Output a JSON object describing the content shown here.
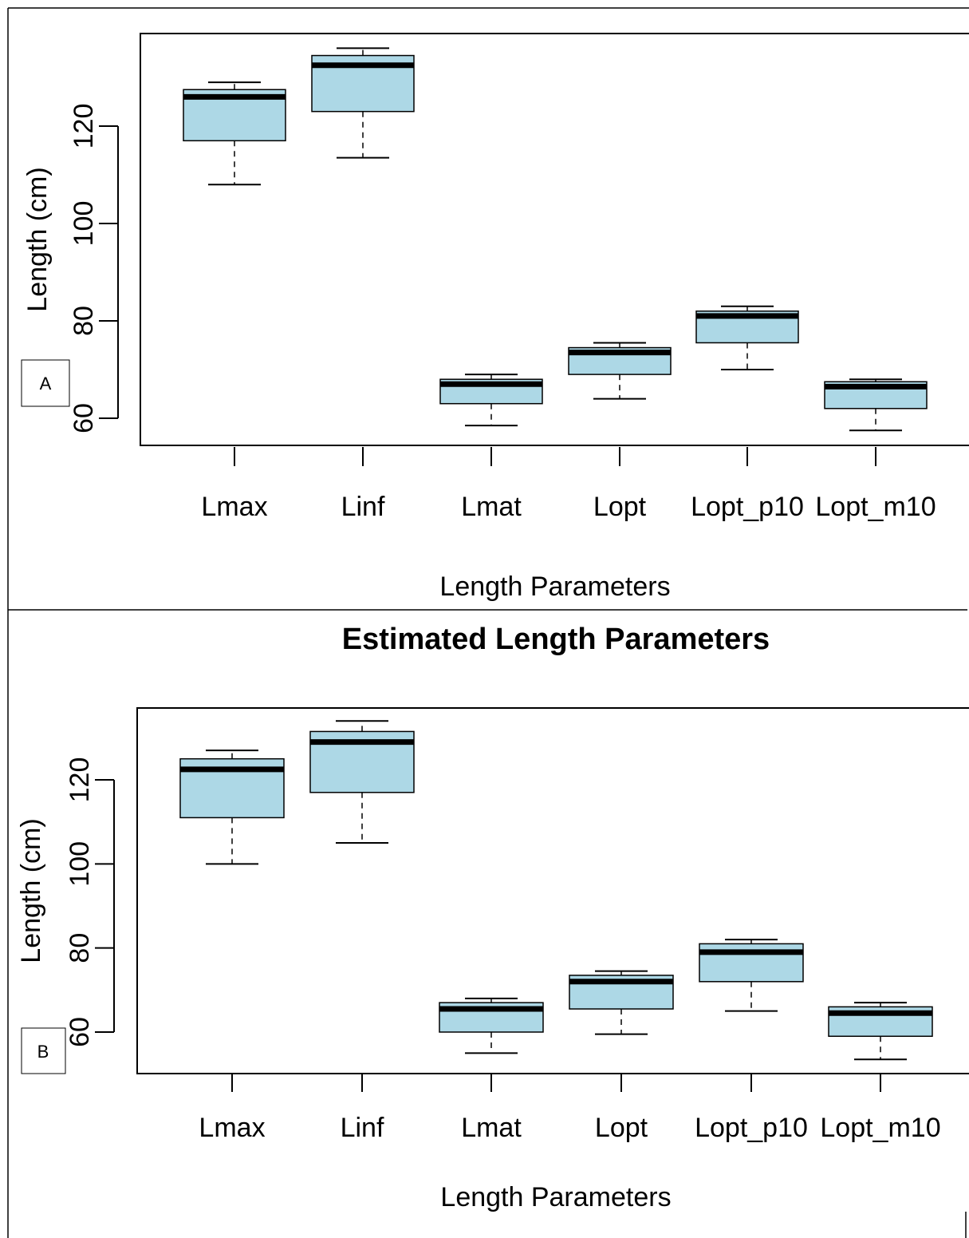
{
  "chart_data": [
    {
      "type": "boxplot",
      "panel_label": "A",
      "title": "",
      "xlabel": "Length Parameters",
      "ylabel": "Length (cm)",
      "yticks": [
        60,
        80,
        100,
        120
      ],
      "categories": [
        "Lmax",
        "Linf",
        "Lmat",
        "Lopt",
        "Lopt_p10",
        "Lopt_m10"
      ],
      "box_color": "#add8e6",
      "boxes": [
        {
          "min": 108,
          "q1": 117,
          "median": 126,
          "q3": 127.5,
          "max": 129
        },
        {
          "min": 113.5,
          "q1": 123,
          "median": 132.5,
          "q3": 134.5,
          "max": 136
        },
        {
          "min": 58.5,
          "q1": 63,
          "median": 67,
          "q3": 68,
          "max": 69
        },
        {
          "min": 64,
          "q1": 69,
          "median": 73.5,
          "q3": 74.5,
          "max": 75.5
        },
        {
          "min": 70,
          "q1": 75.5,
          "median": 81,
          "q3": 82,
          "max": 83
        },
        {
          "min": 57.5,
          "q1": 62,
          "median": 66.5,
          "q3": 67.5,
          "max": 68
        }
      ]
    },
    {
      "type": "boxplot",
      "panel_label": "B",
      "title": "Estimated Length Parameters",
      "xlabel": "Length Parameters",
      "ylabel": "Length (cm)",
      "yticks": [
        60,
        80,
        100,
        120
      ],
      "categories": [
        "Lmax",
        "Linf",
        "Lmat",
        "Lopt",
        "Lopt_p10",
        "Lopt_m10"
      ],
      "box_color": "#add8e6",
      "boxes": [
        {
          "min": 100,
          "q1": 111,
          "median": 122.5,
          "q3": 125,
          "max": 127
        },
        {
          "min": 105,
          "q1": 117,
          "median": 129,
          "q3": 131.5,
          "max": 134
        },
        {
          "min": 55,
          "q1": 60,
          "median": 65.5,
          "q3": 67,
          "max": 68
        },
        {
          "min": 59.5,
          "q1": 65.5,
          "median": 72,
          "q3": 73.5,
          "max": 74.5
        },
        {
          "min": 65,
          "q1": 72,
          "median": 79,
          "q3": 81,
          "max": 82
        },
        {
          "min": 53.5,
          "q1": 59,
          "median": 64.5,
          "q3": 66,
          "max": 67
        }
      ]
    }
  ]
}
